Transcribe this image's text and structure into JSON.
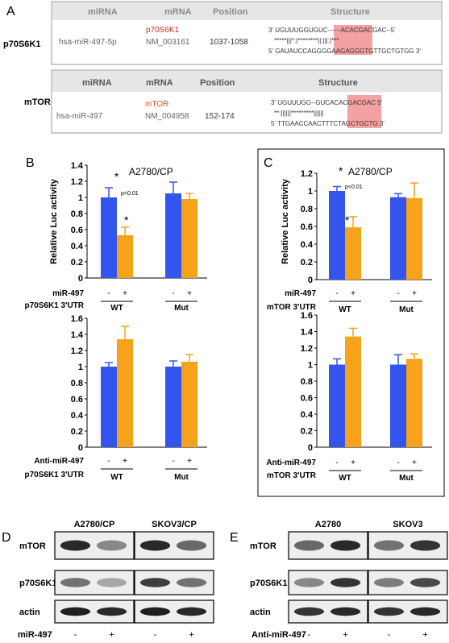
{
  "panel_labels": {
    "a": "A",
    "b": "B",
    "c": "C",
    "d": "D",
    "e": "E"
  },
  "panel_a": {
    "header": {
      "mirna": "miRNA",
      "mrna": "mRNA",
      "position": "Position",
      "structure": "Structure"
    },
    "p70": {
      "gene": "p70S6K1",
      "mirna": "hsa-miR-497-5p",
      "mrna_name": "p70S6K1",
      "mrna_id": "NM_003161",
      "position": "1037-1058",
      "line1": "3' UGUUUGGUGUC------ACACGACGAC--5'",
      "line2": "*****|||*:|********||:|||:|***",
      "line3": "5' GAUAUCCAGGGGAAGAGGGTGTTGCTGTGG 3'"
    },
    "mtor": {
      "gene": "mTOR",
      "mirna": "hsa-miR-497",
      "mrna_name": "mTOR",
      "mrna_id": "NM_004958",
      "position": "152-174",
      "line1": "3' UGUUUGG--GUCACACGACGAC 5'",
      "line2": "**:||||||*********||||||",
      "line3": "5' TTGAACCAACTTTCTAGCTGCTG 3'"
    }
  },
  "colors": {
    "blue": "#3355ee",
    "orange": "#f7a21b",
    "highlight": "#f08a8a",
    "red_text": "#d42a1e",
    "orange_text": "#e2501d"
  },
  "chart_data": [
    {
      "id": "B-top",
      "type": "bar",
      "title": "A2780/CP",
      "ylabel": "Relative Luc activity",
      "ylim": [
        0,
        1.4
      ],
      "yticks": [
        "0",
        "0.2",
        "0.4",
        "0.6",
        "0.8",
        "1",
        "1.2",
        "1.4"
      ],
      "series": [
        {
          "values": [
            1.0,
            1.05
          ],
          "errors": [
            0.12,
            0.14
          ]
        },
        {
          "values": [
            0.53,
            0.98
          ],
          "errors": [
            0.1,
            0.07
          ]
        }
      ],
      "group_labels": [
        "WT",
        "Mut"
      ],
      "treatment_label": "miR-497",
      "utr_label": "p70S6K1 3'UTR",
      "signs": [
        "-",
        "+",
        "-",
        "+"
      ],
      "annotations": [
        "*",
        "p<0.01",
        "*"
      ]
    },
    {
      "id": "B-bottom",
      "type": "bar",
      "ylim": [
        0,
        1.6
      ],
      "yticks": [
        "0",
        "0.2",
        "0.4",
        "0.6",
        "0.8",
        "1",
        "1.2",
        "1.4",
        "1.6"
      ],
      "series": [
        {
          "values": [
            1.0,
            1.0
          ],
          "errors": [
            0.05,
            0.07
          ]
        },
        {
          "values": [
            1.34,
            1.06
          ],
          "errors": [
            0.16,
            0.09
          ]
        }
      ],
      "group_labels": [
        "WT",
        "Mut"
      ],
      "treatment_label": "Anti-miR-497",
      "utr_label": "p70S6K1 3'UTR",
      "signs": [
        "-",
        "+",
        "-",
        "+"
      ]
    },
    {
      "id": "C-top",
      "type": "bar",
      "title": "A2780/CP",
      "ylabel": "Relative Luc activity",
      "ylim": [
        0,
        1.2
      ],
      "yticks": [
        "0",
        "0.2",
        "0.4",
        "0.6",
        "0.8",
        "1",
        "1.2"
      ],
      "series": [
        {
          "values": [
            1.0,
            0.93
          ],
          "errors": [
            0.05,
            0.04
          ]
        },
        {
          "values": [
            0.59,
            0.92
          ],
          "errors": [
            0.12,
            0.17
          ]
        }
      ],
      "group_labels": [
        "WT",
        "Mut"
      ],
      "treatment_label": "miR-497",
      "utr_label": "mTOR 3'UTR",
      "signs": [
        "-",
        "+",
        "-",
        "+"
      ],
      "annotations": [
        "*",
        "p<0.01",
        "*"
      ]
    },
    {
      "id": "C-bottom",
      "type": "bar",
      "ylim": [
        0,
        1.6
      ],
      "yticks": [
        "0",
        "0.2",
        "0.4",
        "0.6",
        "0.8",
        "1",
        "1.2",
        "1.4",
        "1.6"
      ],
      "series": [
        {
          "values": [
            1.0,
            1.0
          ],
          "errors": [
            0.07,
            0.12
          ]
        },
        {
          "values": [
            1.34,
            1.07
          ],
          "errors": [
            0.1,
            0.06
          ]
        }
      ],
      "group_labels": [
        "WT",
        "Mut"
      ],
      "treatment_label": "Anti-miR-497",
      "utr_label": "mTOR 3'UTR",
      "signs": [
        "-",
        "+",
        "-",
        "+"
      ]
    }
  ],
  "blot_d": {
    "cell_lines": [
      "A2780/CP",
      "SKOV3/CP"
    ],
    "rows": [
      "mTOR",
      "p70S6K1",
      "actin"
    ],
    "treatment_label": "miR-497",
    "signs": [
      "-",
      "+",
      "-",
      "+"
    ]
  },
  "blot_e": {
    "cell_lines": [
      "A2780",
      "SKOV3"
    ],
    "rows": [
      "mTOR",
      "p70S6K1",
      "actin"
    ],
    "treatment_label": "Anti-miR-497",
    "signs": [
      "-",
      "+",
      "-",
      "+"
    ]
  }
}
